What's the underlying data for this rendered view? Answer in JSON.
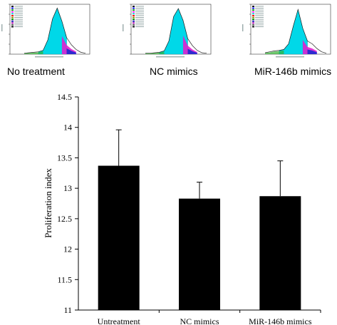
{
  "panels": [
    {
      "caption": "No treatment",
      "shape": [
        0.02,
        0.03,
        0.04,
        0.05,
        0.08,
        0.3,
        0.75,
        0.98,
        0.7,
        0.35,
        0.2,
        0.1,
        0.04,
        0.02
      ]
    },
    {
      "caption": "NC mimics",
      "shape": [
        0.02,
        0.02,
        0.03,
        0.04,
        0.07,
        0.28,
        0.8,
        0.97,
        0.72,
        0.33,
        0.18,
        0.08,
        0.03,
        0.02
      ]
    },
    {
      "caption": "MiR-146b mimics",
      "shape": [
        0.03,
        0.05,
        0.07,
        0.08,
        0.1,
        0.22,
        0.6,
        0.95,
        0.55,
        0.28,
        0.22,
        0.12,
        0.05,
        0.02
      ]
    }
  ],
  "chart_data": {
    "type": "bar",
    "categories": [
      "Untreatment",
      "NC mimics",
      "MiR-146b mimics"
    ],
    "values": [
      13.37,
      12.83,
      12.87
    ],
    "errors": [
      0.59,
      0.27,
      0.58
    ],
    "ylabel": "Proliferation index",
    "ylim": [
      11,
      14.5
    ],
    "yticks": [
      "11",
      "11.5",
      "12",
      "12.5",
      "13",
      "13.5",
      "14",
      "14.5"
    ],
    "bar_color": "#000000",
    "grid": false
  }
}
